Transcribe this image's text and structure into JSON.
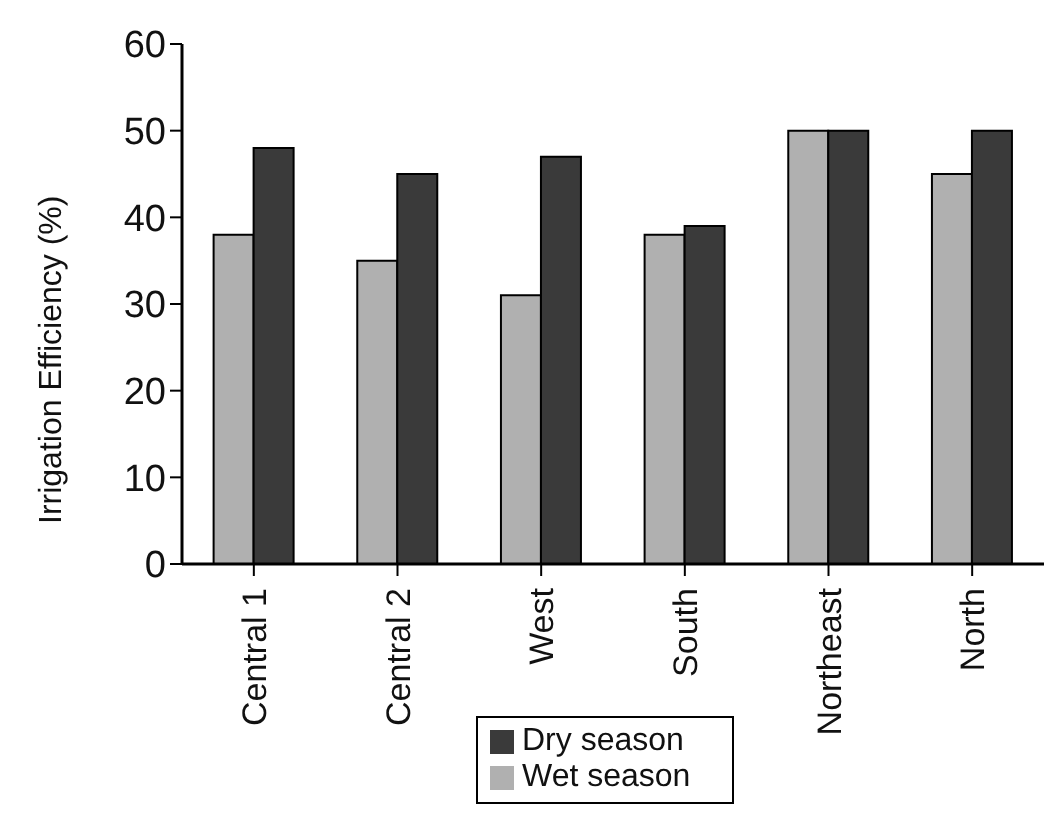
{
  "chart_data": {
    "type": "bar",
    "ylabel": "Irrigation Efficiency (%)",
    "categories": [
      "Central 1",
      "Central 2",
      "West",
      "South",
      "Northeast",
      "North"
    ],
    "series": [
      {
        "name": "Wet season",
        "color": "#b0b0b0",
        "values": [
          38,
          35,
          31,
          38,
          50,
          45
        ]
      },
      {
        "name": "Dry season",
        "color": "#3a3a3a",
        "values": [
          48,
          45,
          47,
          39,
          50,
          50
        ]
      }
    ],
    "ylim": [
      0,
      60
    ],
    "yticks": [
      0,
      10,
      20,
      30,
      40,
      50,
      60
    ],
    "grid": false,
    "legend": "bottom"
  }
}
